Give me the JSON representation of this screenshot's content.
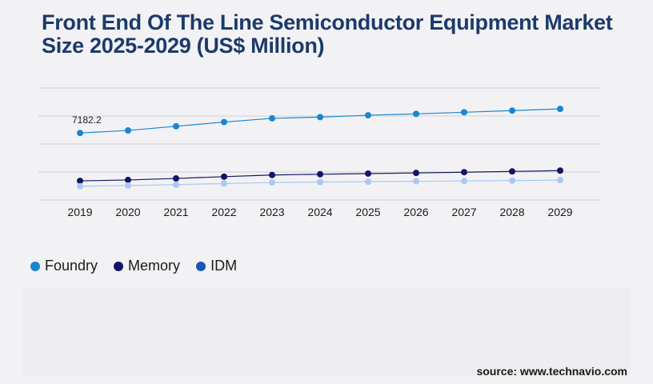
{
  "title": "Front End Of The Line Semiconductor Equipment Market Size 2025-2029 (US$ Million)",
  "source": "source: www.technavio.com",
  "chart_data": {
    "type": "line",
    "title": "Front End Of The Line Semiconductor Equipment Market Size 2025-2029 (US$ Million)",
    "xlabel": "",
    "ylabel": "",
    "categories": [
      "2019",
      "2020",
      "2021",
      "2022",
      "2023",
      "2024",
      "2025",
      "2026",
      "2027",
      "2028",
      "2029"
    ],
    "ylim": [
      0,
      12000
    ],
    "grid": true,
    "legend_position": "bottom-left",
    "annotations": [
      {
        "series": "Foundry",
        "x": "2019",
        "label": "7182.2"
      }
    ],
    "series": [
      {
        "name": "Foundry",
        "color": "#1a85d1",
        "values": [
          7182.2,
          7450,
          7900,
          8350,
          8750,
          8880,
          9080,
          9230,
          9400,
          9580,
          9760
        ]
      },
      {
        "name": "Memory",
        "color": "#141466",
        "values": [
          2050,
          2150,
          2310,
          2500,
          2680,
          2760,
          2830,
          2900,
          2980,
          3060,
          3150
        ]
      },
      {
        "name": "IDM",
        "color": "#a9c8f5",
        "values": [
          1480,
          1550,
          1650,
          1760,
          1880,
          1920,
          1960,
          2000,
          2040,
          2080,
          2130
        ]
      }
    ]
  },
  "legend": [
    {
      "label": "Foundry",
      "color": "#1a85d1"
    },
    {
      "label": "Memory",
      "color": "#141466"
    },
    {
      "label": "IDM",
      "color": "#1c56b5"
    }
  ]
}
